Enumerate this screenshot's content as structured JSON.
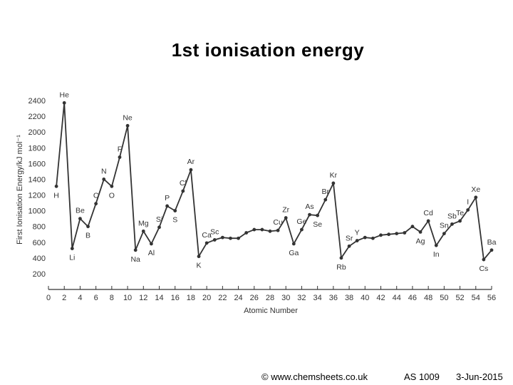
{
  "slide": {
    "title": "1st ionisation energy",
    "footer": {
      "source": "© www.chemsheets.co.uk",
      "code": "AS 1009",
      "date": "3-Jun-2015"
    }
  },
  "chart_data": {
    "type": "line",
    "title": "",
    "xlabel": "Atomic Number",
    "ylabel": "First Ionisation Energy/kJ mol⁻¹",
    "xlim": [
      0,
      56
    ],
    "ylim": [
      0,
      2400
    ],
    "x_ticks": [
      "0",
      "2",
      "4",
      "6",
      "8",
      "10",
      "12",
      "14",
      "16",
      "18",
      "20",
      "22",
      "24",
      "26",
      "28",
      "30",
      "32",
      "34",
      "36",
      "38",
      "40",
      "42",
      "44",
      "46",
      "48",
      "50",
      "52",
      "54",
      "56"
    ],
    "y_ticks": [
      "200",
      "400",
      "600",
      "800",
      "1000",
      "1200",
      "1400",
      "1600",
      "1800",
      "2000",
      "2200",
      "2400"
    ],
    "grid": false,
    "series": [
      {
        "x": [
          1,
          2,
          3,
          4,
          5,
          6,
          7,
          8,
          9,
          10,
          11,
          12,
          13,
          14,
          15,
          16,
          17,
          18,
          19,
          20,
          21,
          22,
          23,
          24,
          25,
          26,
          27,
          28,
          29,
          30,
          31,
          32,
          33,
          34,
          35,
          36,
          37,
          38,
          39,
          40,
          41,
          42,
          43,
          44,
          45,
          46,
          47,
          48,
          49,
          50,
          51,
          52,
          53,
          54,
          55,
          56
        ],
        "y": [
          1310,
          2370,
          520,
          900,
          800,
          1090,
          1400,
          1310,
          1680,
          2080,
          500,
          740,
          580,
          790,
          1060,
          1000,
          1250,
          1520,
          420,
          590,
          630,
          660,
          650,
          650,
          720,
          760,
          760,
          740,
          750,
          910,
          580,
          760,
          950,
          940,
          1140,
          1350,
          400,
          550,
          620,
          660,
          650,
          690,
          700,
          710,
          720,
          800,
          730,
          870,
          560,
          710,
          830,
          870,
          1010,
          1170,
          380,
          500
        ]
      }
    ],
    "point_labels": [
      "H",
      "He",
      "Li",
      "Be",
      "B",
      "C",
      "N",
      "O",
      "F",
      "Ne",
      "Na",
      "Mg",
      "Al",
      "Si",
      "P",
      "S",
      "Cl",
      "Ar",
      "K",
      "Ca",
      "Sc",
      "",
      "",
      "",
      "",
      "",
      "",
      "",
      "Cu",
      "Zr",
      "Ga",
      "Ge",
      "As",
      "Se",
      "Br",
      "Kr",
      "Rb",
      "Sr",
      "Y",
      "",
      "",
      "",
      "",
      "",
      "",
      "",
      "Ag",
      "Cd",
      "In",
      "Sn",
      "Sb",
      "Te",
      "I",
      "Xe",
      "Cs",
      "Ba"
    ]
  }
}
